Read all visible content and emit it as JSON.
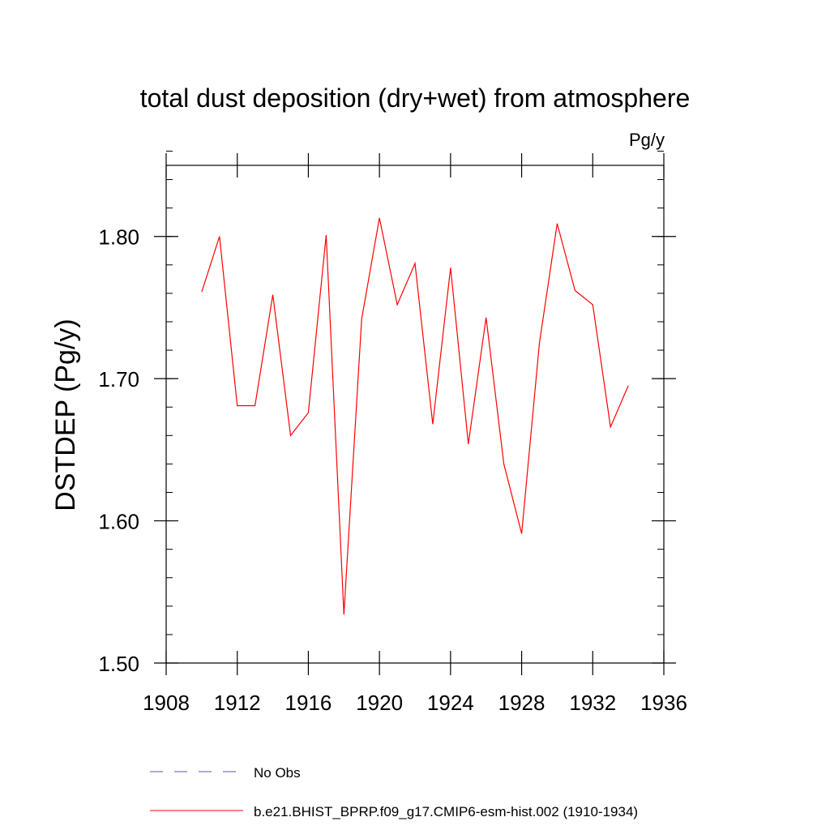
{
  "chart_data": {
    "type": "line",
    "title": "total dust deposition (dry+wet) from atmosphere",
    "units_label": "Pg/y",
    "ylabel": "DSTDEP  (Pg/y)",
    "xlabel": "",
    "xlim": [
      1908,
      1936
    ],
    "ylim": [
      1.5,
      1.85
    ],
    "x_ticks": [
      1908,
      1912,
      1916,
      1920,
      1924,
      1928,
      1932,
      1936
    ],
    "x_tick_labels": [
      "1908",
      "1912",
      "1916",
      "1920",
      "1924",
      "1928",
      "1932",
      "1936"
    ],
    "y_ticks": [
      1.5,
      1.6,
      1.7,
      1.8
    ],
    "y_tick_labels": [
      "1.50",
      "1.60",
      "1.70",
      "1.80"
    ],
    "grid": false,
    "legend_position": "bottom",
    "series": [
      {
        "name": "b.e21.BHIST_BPRP.f09_g17.CMIP6-esm-hist.002 (1910-1934)",
        "color": "#ff0000",
        "style": "solid",
        "x": [
          1910,
          1911,
          1912,
          1913,
          1914,
          1915,
          1916,
          1917,
          1918,
          1919,
          1920,
          1921,
          1922,
          1923,
          1924,
          1925,
          1926,
          1927,
          1928,
          1929,
          1930,
          1931,
          1932,
          1933,
          1934
        ],
        "y": [
          1.761,
          1.8,
          1.681,
          1.681,
          1.759,
          1.66,
          1.676,
          1.801,
          1.534,
          1.742,
          1.813,
          1.752,
          1.781,
          1.668,
          1.778,
          1.654,
          1.743,
          1.64,
          1.591,
          1.725,
          1.809,
          1.762,
          1.752,
          1.666,
          1.695
        ]
      },
      {
        "name": "No Obs",
        "color": "#5b4fb0",
        "style": "dashed",
        "x": [],
        "y": []
      }
    ]
  }
}
